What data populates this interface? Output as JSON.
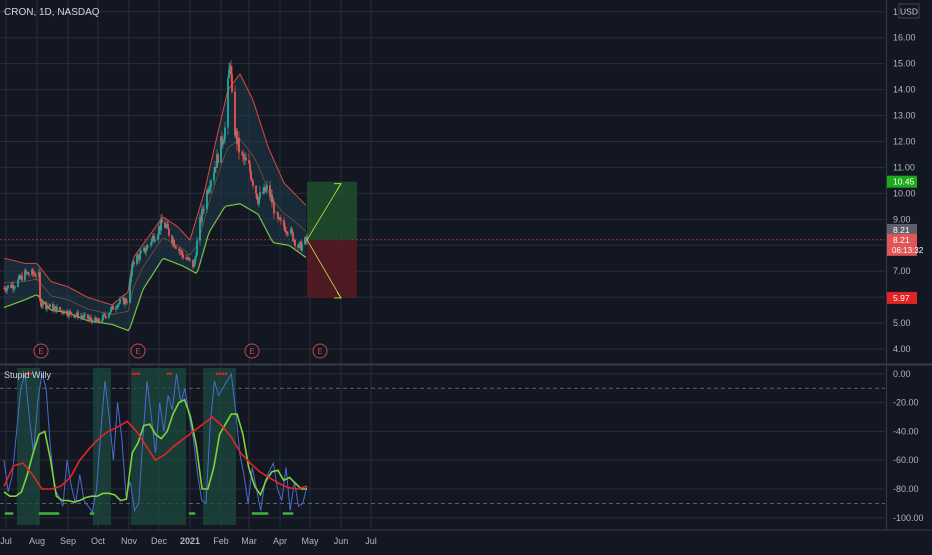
{
  "symbol_label": "CRON, 1D, NASDAQ",
  "currency_button": "USD",
  "indicator_name": "Stupid Willy",
  "colors": {
    "background": "#131722",
    "grid": "#2a2e39",
    "bullish": "#26a69a",
    "bearish": "#ef5350",
    "bollinger_upper": "#e0463f",
    "bollinger_lower": "#7cc242",
    "bollinger_fill": "#1e3848",
    "willy_line": "#4a6bd0",
    "willy_fast": "#7cd43a",
    "willy_slow": "#e0252b",
    "profit_zone": "#1f4d2b",
    "loss_zone": "#5a1a24",
    "target_label": "#1ca91c",
    "stop_label": "#e02424",
    "current_label": "#e05656",
    "projection": "#c6e83a"
  },
  "chart_data": [
    {
      "type": "candlestick",
      "title": "CRON, 1D, NASDAQ",
      "y_ticks": [
        "4.00",
        "5.00",
        "6.00",
        "7.00",
        "8.00",
        "9.00",
        "10.00",
        "11.00",
        "12.00",
        "13.00",
        "14.00",
        "15.00",
        "16.00",
        "17.00"
      ],
      "x_ticks": [
        "Jul",
        "Aug",
        "Sep",
        "Oct",
        "Nov",
        "Dec",
        "2021",
        "Feb",
        "Mar",
        "Apr",
        "May",
        "Jun",
        "Jul"
      ],
      "ylim": [
        3.5,
        17.3
      ],
      "grid": true,
      "price_labels": {
        "target": "10.45",
        "prev_close": "8.21",
        "last": "8.21",
        "countdown": "06:13:32",
        "stop": "5.97"
      },
      "earnings_markers": [
        "E",
        "E",
        "E",
        "E"
      ],
      "close_anchors": [
        [
          "2020-06-29",
          6.35
        ],
        [
          "2020-07-10",
          6.5
        ],
        [
          "2020-07-20",
          6.9
        ],
        [
          "2020-07-30",
          6.9
        ],
        [
          "2020-08-03",
          6.8
        ],
        [
          "2020-08-04",
          5.8
        ],
        [
          "2020-08-15",
          5.6
        ],
        [
          "2020-09-01",
          5.4
        ],
        [
          "2020-09-15",
          5.25
        ],
        [
          "2020-10-01",
          5.05
        ],
        [
          "2020-10-10",
          5.35
        ],
        [
          "2020-10-20",
          5.75
        ],
        [
          "2020-10-31",
          5.9
        ],
        [
          "2020-11-05",
          7.4
        ],
        [
          "2020-11-15",
          7.7
        ],
        [
          "2020-11-25",
          8.3
        ],
        [
          "2020-12-05",
          8.9
        ],
        [
          "2020-12-15",
          8.2
        ],
        [
          "2020-12-25",
          7.6
        ],
        [
          "2021-01-05",
          7.2
        ],
        [
          "2021-01-10",
          8.7
        ],
        [
          "2021-01-20",
          10.4
        ],
        [
          "2021-01-28",
          11.3
        ],
        [
          "2021-02-05",
          12.5
        ],
        [
          "2021-02-10",
          15.2
        ],
        [
          "2021-02-13",
          12.8
        ],
        [
          "2021-02-20",
          11.5
        ],
        [
          "2021-03-01",
          11.0
        ],
        [
          "2021-03-10",
          9.8
        ],
        [
          "2021-03-20",
          10.2
        ],
        [
          "2021-03-30",
          8.9
        ],
        [
          "2021-04-10",
          8.6
        ],
        [
          "2021-04-20",
          7.9
        ],
        [
          "2021-04-28",
          8.21
        ]
      ],
      "bollinger_upper_anchors": [
        [
          "2020-06-29",
          7.5
        ],
        [
          "2020-07-20",
          7.3
        ],
        [
          "2020-08-01",
          7.3
        ],
        [
          "2020-08-15",
          6.6
        ],
        [
          "2020-09-01",
          6.4
        ],
        [
          "2020-09-20",
          6.0
        ],
        [
          "2020-10-15",
          5.7
        ],
        [
          "2020-10-31",
          6.2
        ],
        [
          "2020-11-05",
          7.5
        ],
        [
          "2020-11-20",
          8.3
        ],
        [
          "2020-12-05",
          9.1
        ],
        [
          "2020-12-20",
          8.7
        ],
        [
          "2021-01-01",
          8.2
        ],
        [
          "2021-01-15",
          10.0
        ],
        [
          "2021-01-28",
          12.2
        ],
        [
          "2021-02-08",
          14.0
        ],
        [
          "2021-02-20",
          14.6
        ],
        [
          "2021-03-05",
          13.6
        ],
        [
          "2021-03-20",
          11.8
        ],
        [
          "2021-04-05",
          10.4
        ],
        [
          "2021-04-28",
          9.5
        ]
      ],
      "bollinger_lower_anchors": [
        [
          "2020-06-29",
          5.6
        ],
        [
          "2020-07-20",
          5.9
        ],
        [
          "2020-08-01",
          6.1
        ],
        [
          "2020-08-15",
          5.5
        ],
        [
          "2020-09-01",
          5.4
        ],
        [
          "2020-09-20",
          5.1
        ],
        [
          "2020-10-15",
          4.95
        ],
        [
          "2020-11-01",
          4.7
        ],
        [
          "2020-11-15",
          6.3
        ],
        [
          "2020-12-05",
          7.5
        ],
        [
          "2020-12-25",
          7.2
        ],
        [
          "2021-01-08",
          6.9
        ],
        [
          "2021-01-20",
          8.5
        ],
        [
          "2021-02-05",
          9.5
        ],
        [
          "2021-02-20",
          9.6
        ],
        [
          "2021-03-10",
          9.2
        ],
        [
          "2021-03-25",
          8.1
        ],
        [
          "2021-04-10",
          8.0
        ],
        [
          "2021-04-28",
          7.5
        ]
      ],
      "projection": {
        "start": [
          "2021-04-28",
          8.21
        ],
        "target": [
          "2021-06-17",
          10.45
        ],
        "stop": [
          "2021-06-17",
          5.97
        ]
      }
    },
    {
      "type": "line",
      "title": "Stupid Willy",
      "y_ticks": [
        "0.00",
        "-20.00",
        "-40.00",
        "-60.00",
        "-80.00",
        "-100.00"
      ],
      "ylim": [
        -105,
        4
      ],
      "series": [
        {
          "values": [
            -60,
            -82,
            -70,
            -40,
            -10,
            0,
            -30,
            -55,
            -20,
            0,
            -10,
            -50,
            -80,
            -85,
            -92,
            -60,
            -78,
            -90,
            -70,
            -88,
            -92,
            -96,
            -80,
            -40,
            -5,
            -30,
            -60,
            -20,
            -45,
            -85,
            -75,
            -95,
            -90,
            -45,
            -5,
            -30,
            -55,
            -20,
            -40,
            -15,
            -25,
            0,
            -20,
            -10,
            -30,
            -45,
            -70,
            -88,
            -90,
            -35,
            -5,
            -15,
            -10,
            -5,
            0,
            -25,
            -55,
            -70,
            -90,
            -65,
            -80,
            -95,
            -75,
            -68,
            -62,
            -80,
            -88,
            -65,
            -95,
            -75,
            -92,
            -90,
            -78
          ]
        },
        {
          "values": [
            -82,
            -85,
            -85,
            -82,
            -70,
            -55,
            -42,
            -40,
            -60,
            -85,
            -88,
            -88,
            -89,
            -88,
            -86,
            -85,
            -85,
            -83,
            -83,
            -84,
            -88,
            -87,
            -55,
            -48,
            -36,
            -35,
            -42,
            -45,
            -40,
            -28,
            -20,
            -18,
            -30,
            -50,
            -80,
            -80,
            -65,
            -42,
            -35,
            -28,
            -28,
            -42,
            -65,
            -78,
            -84,
            -74,
            -68,
            -67,
            -74,
            -72,
            -76,
            -80,
            -80
          ]
        },
        {
          "values": [
            -78,
            -64,
            -62,
            -70,
            -80,
            -80,
            -78,
            -72,
            -60,
            -52,
            -45,
            -40,
            -37,
            -33,
            -40,
            -50,
            -60,
            -56,
            -50,
            -45,
            -40,
            -35,
            -30,
            -36,
            -44,
            -55,
            -62,
            -68,
            -72,
            -76,
            -79,
            -80,
            -78
          ]
        }
      ]
    }
  ]
}
